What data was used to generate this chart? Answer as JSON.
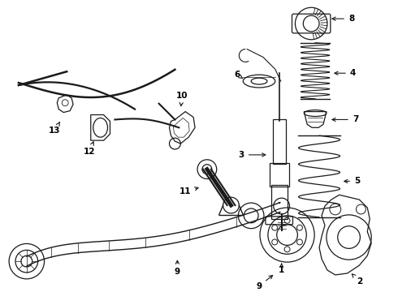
{
  "bg_color": "#ffffff",
  "line_color": "#1a1a1a",
  "fig_width": 4.9,
  "fig_height": 3.6,
  "dpi": 100,
  "font_size": 7.5
}
